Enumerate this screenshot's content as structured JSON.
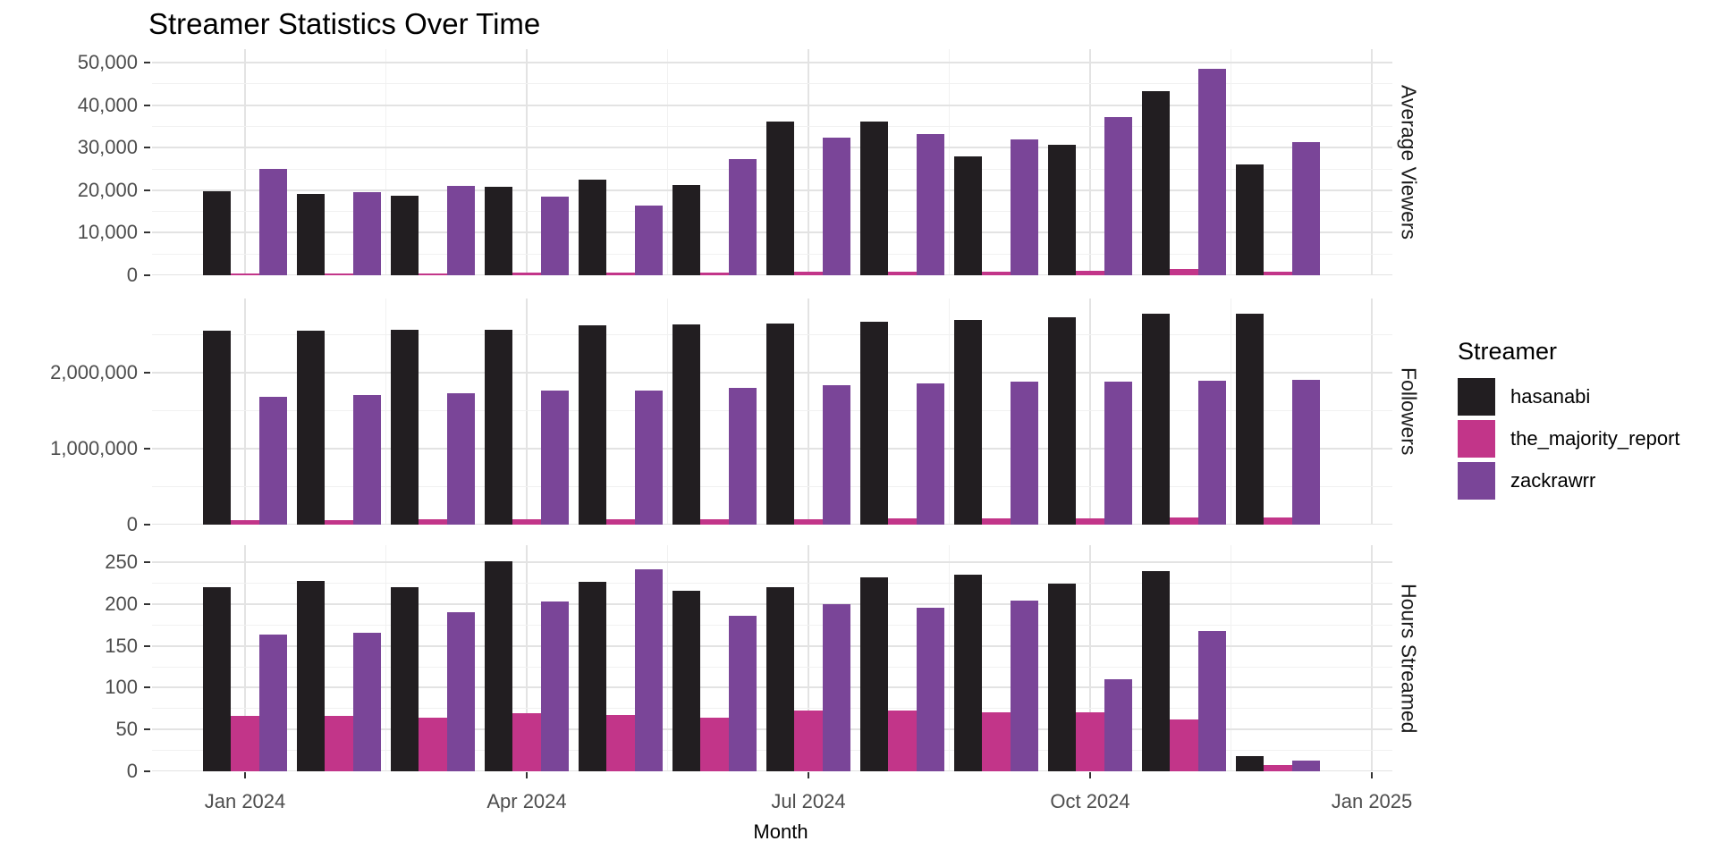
{
  "title": "Streamer Statistics Over Time",
  "x_axis_title": "Month",
  "colors": {
    "hasanabi": "#221e21",
    "the_majority_report": "#c23589",
    "zackrawrr": "#7a4598",
    "grid_major": "#e3e3e3",
    "grid_minor": "#f1f1f1",
    "axis_text": "#4d4d4d"
  },
  "legend": {
    "title": "Streamer",
    "items": [
      {
        "label": "hasanabi",
        "color": "#221e21"
      },
      {
        "label": "the_majority_report",
        "color": "#c23589"
      },
      {
        "label": "zackrawrr",
        "color": "#7a4598"
      }
    ]
  },
  "x_ticks": {
    "labels": [
      "Jan 2024",
      "Apr 2024",
      "Jul 2024",
      "Oct 2024",
      "Jan 2025"
    ],
    "month_index": [
      0,
      3,
      6,
      9,
      12
    ]
  },
  "chart_data": [
    {
      "type": "bar",
      "facet": "Average Viewers",
      "title": "Streamer Statistics Over Time",
      "xlabel": "Month",
      "legend_position": "right",
      "grid": true,
      "categories": [
        "Jan 2024",
        "Feb 2024",
        "Mar 2024",
        "Apr 2024",
        "May 2024",
        "Jun 2024",
        "Jul 2024",
        "Aug 2024",
        "Sep 2024",
        "Oct 2024",
        "Nov 2024",
        "Dec 2024"
      ],
      "series": [
        {
          "name": "hasanabi",
          "values": [
            19700,
            19100,
            18600,
            20700,
            22500,
            21300,
            36100,
            36100,
            27900,
            30700,
            43300,
            26100
          ]
        },
        {
          "name": "the_majority_report",
          "values": [
            400,
            450,
            500,
            550,
            600,
            700,
            800,
            900,
            850,
            950,
            1400,
            900
          ]
        },
        {
          "name": "zackrawrr",
          "values": [
            24900,
            19600,
            21000,
            18400,
            16400,
            27300,
            32400,
            33300,
            31900,
            37200,
            48600,
            31400
          ]
        }
      ],
      "ylim": [
        0,
        53150
      ],
      "yticks": {
        "values": [
          0,
          10000,
          20000,
          30000,
          40000,
          50000
        ],
        "labels": [
          "0",
          "10,000",
          "20,000",
          "30,000",
          "40,000",
          "50,000"
        ]
      },
      "yminor": [
        5000,
        15000,
        25000,
        35000,
        45000
      ]
    },
    {
      "type": "bar",
      "facet": "Followers",
      "xlabel": "Month",
      "grid": true,
      "categories": [
        "Jan 2024",
        "Feb 2024",
        "Mar 2024",
        "Apr 2024",
        "May 2024",
        "Jun 2024",
        "Jul 2024",
        "Aug 2024",
        "Sep 2024",
        "Oct 2024",
        "Nov 2024",
        "Dec 2024"
      ],
      "series": [
        {
          "name": "hasanabi",
          "values": [
            2550000,
            2550000,
            2560000,
            2560000,
            2620000,
            2630000,
            2650000,
            2670000,
            2700000,
            2730000,
            2780000,
            2780000
          ]
        },
        {
          "name": "the_majority_report",
          "values": [
            62000,
            64000,
            66000,
            68000,
            70000,
            72000,
            75000,
            78000,
            82000,
            85000,
            90000,
            93000
          ]
        },
        {
          "name": "zackrawrr",
          "values": [
            1680000,
            1710000,
            1730000,
            1760000,
            1770000,
            1800000,
            1840000,
            1860000,
            1880000,
            1880000,
            1900000,
            1910000
          ]
        }
      ],
      "ylim": [
        0,
        2976000
      ],
      "yticks": {
        "values": [
          0,
          1000000,
          2000000
        ],
        "labels": [
          "0",
          "1,000,000",
          "2,000,000"
        ]
      },
      "yminor": [
        500000,
        1500000,
        2500000
      ]
    },
    {
      "type": "bar",
      "facet": "Hours Streamed",
      "xlabel": "Month",
      "grid": true,
      "categories": [
        "Jan 2024",
        "Feb 2024",
        "Mar 2024",
        "Apr 2024",
        "May 2024",
        "Jun 2024",
        "Jul 2024",
        "Aug 2024",
        "Sep 2024",
        "Oct 2024",
        "Nov 2024",
        "Dec 2024"
      ],
      "series": [
        {
          "name": "hasanabi",
          "values": [
            220,
            228,
            220,
            251,
            226,
            216,
            220,
            232,
            235,
            224,
            239,
            18
          ]
        },
        {
          "name": "the_majority_report",
          "values": [
            66,
            66,
            64,
            69,
            67,
            64,
            73,
            73,
            70,
            70,
            62,
            8
          ]
        },
        {
          "name": "zackrawrr",
          "values": [
            164,
            166,
            190,
            203,
            242,
            186,
            200,
            195,
            204,
            110,
            168,
            13
          ]
        }
      ],
      "ylim": [
        0,
        270
      ],
      "yticks": {
        "values": [
          0,
          50,
          100,
          150,
          200,
          250
        ],
        "labels": [
          "0",
          "50",
          "100",
          "150",
          "200",
          "250"
        ]
      },
      "yminor": [
        25,
        75,
        125,
        175,
        225
      ]
    }
  ]
}
